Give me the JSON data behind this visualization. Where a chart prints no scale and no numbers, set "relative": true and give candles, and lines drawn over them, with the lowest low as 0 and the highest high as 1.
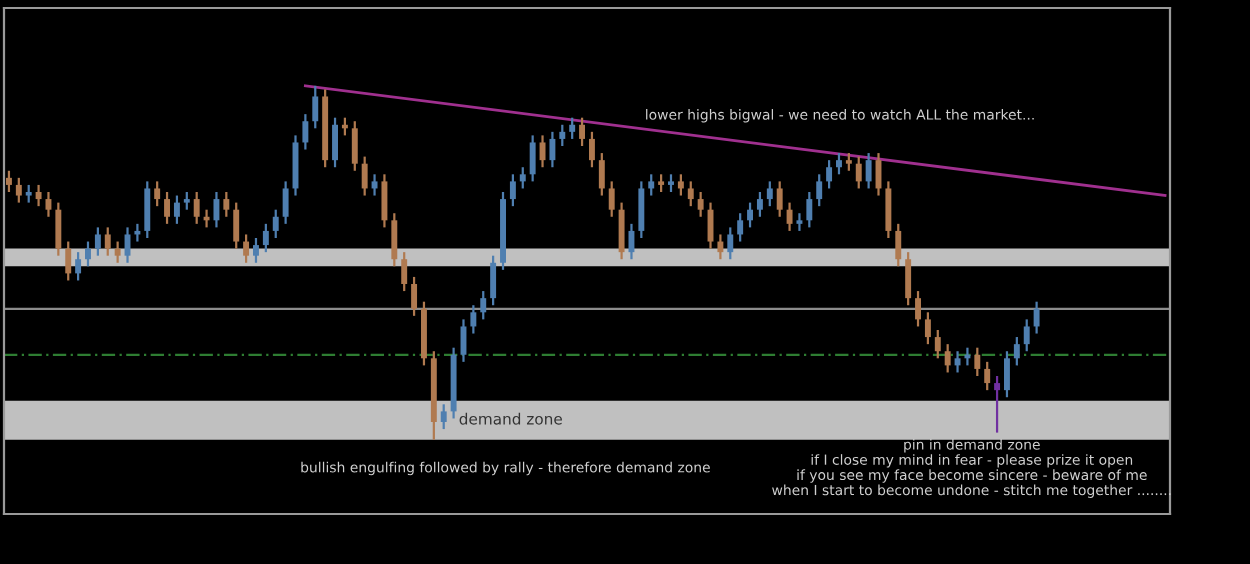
{
  "chart_data": {
    "type": "candlestick",
    "relative": true,
    "categories": [
      null,
      null,
      null,
      null,
      null,
      null,
      null,
      null,
      null,
      null,
      null,
      null,
      null,
      null,
      null,
      null,
      null,
      null,
      null,
      null,
      null,
      null,
      null,
      null,
      null,
      null,
      null,
      null,
      null,
      null,
      null,
      null,
      null,
      null,
      null,
      null,
      null,
      null,
      null,
      null,
      null,
      null,
      null,
      null,
      null,
      null,
      null,
      null,
      null,
      null,
      null,
      null,
      null,
      null,
      null,
      null,
      null,
      null,
      null,
      null,
      null,
      null,
      null,
      null,
      null,
      null,
      null,
      null,
      null,
      null,
      null,
      null,
      null,
      null,
      null,
      null,
      null,
      null,
      null,
      null,
      null,
      null,
      null,
      null,
      null,
      null,
      null,
      null,
      null,
      null,
      null,
      null,
      null,
      null,
      null,
      null,
      null,
      null,
      null,
      null,
      null,
      null,
      null,
      null,
      null,
      null,
      null,
      null,
      null,
      null,
      null,
      null,
      null,
      null,
      null,
      null,
      null,
      null
    ],
    "ohlc": [
      [
        0.74,
        0.76,
        0.7,
        0.72
      ],
      [
        0.72,
        0.74,
        0.67,
        0.69
      ],
      [
        0.69,
        0.72,
        0.67,
        0.7
      ],
      [
        0.7,
        0.72,
        0.66,
        0.68
      ],
      [
        0.68,
        0.7,
        0.63,
        0.65
      ],
      [
        0.65,
        0.67,
        0.52,
        0.54
      ],
      [
        0.54,
        0.56,
        0.45,
        0.47
      ],
      [
        0.47,
        0.53,
        0.45,
        0.51
      ],
      [
        0.51,
        0.56,
        0.49,
        0.54
      ],
      [
        0.54,
        0.6,
        0.52,
        0.58
      ],
      [
        0.58,
        0.6,
        0.52,
        0.54
      ],
      [
        0.54,
        0.56,
        0.5,
        0.52
      ],
      [
        0.52,
        0.6,
        0.5,
        0.58
      ],
      [
        0.58,
        0.61,
        0.56,
        0.59
      ],
      [
        0.59,
        0.73,
        0.57,
        0.71
      ],
      [
        0.71,
        0.73,
        0.66,
        0.68
      ],
      [
        0.68,
        0.7,
        0.61,
        0.63
      ],
      [
        0.63,
        0.69,
        0.61,
        0.67
      ],
      [
        0.67,
        0.7,
        0.65,
        0.68
      ],
      [
        0.68,
        0.7,
        0.61,
        0.63
      ],
      [
        0.63,
        0.65,
        0.6,
        0.62
      ],
      [
        0.62,
        0.7,
        0.6,
        0.68
      ],
      [
        0.68,
        0.7,
        0.63,
        0.65
      ],
      [
        0.65,
        0.67,
        0.54,
        0.56
      ],
      [
        0.56,
        0.58,
        0.5,
        0.52
      ],
      [
        0.52,
        0.57,
        0.5,
        0.55
      ],
      [
        0.55,
        0.61,
        0.53,
        0.59
      ],
      [
        0.59,
        0.65,
        0.57,
        0.63
      ],
      [
        0.63,
        0.73,
        0.61,
        0.71
      ],
      [
        0.71,
        0.86,
        0.69,
        0.84
      ],
      [
        0.84,
        0.92,
        0.82,
        0.9
      ],
      [
        0.9,
        1.0,
        0.88,
        0.97
      ],
      [
        0.97,
        0.99,
        0.77,
        0.79
      ],
      [
        0.79,
        0.91,
        0.77,
        0.89
      ],
      [
        0.89,
        0.91,
        0.86,
        0.88
      ],
      [
        0.88,
        0.9,
        0.76,
        0.78
      ],
      [
        0.78,
        0.8,
        0.69,
        0.71
      ],
      [
        0.71,
        0.75,
        0.69,
        0.73
      ],
      [
        0.73,
        0.75,
        0.6,
        0.62
      ],
      [
        0.62,
        0.64,
        0.49,
        0.51
      ],
      [
        0.51,
        0.53,
        0.42,
        0.44
      ],
      [
        0.44,
        0.46,
        0.35,
        0.37
      ],
      [
        0.37,
        0.39,
        0.21,
        0.23
      ],
      [
        0.23,
        0.25,
        0.0,
        0.05
      ],
      [
        0.05,
        0.1,
        0.03,
        0.08
      ],
      [
        0.08,
        0.26,
        0.06,
        0.24
      ],
      [
        0.24,
        0.34,
        0.22,
        0.32
      ],
      [
        0.32,
        0.38,
        0.3,
        0.36
      ],
      [
        0.36,
        0.42,
        0.34,
        0.4
      ],
      [
        0.4,
        0.52,
        0.38,
        0.5
      ],
      [
        0.5,
        0.7,
        0.48,
        0.68
      ],
      [
        0.68,
        0.75,
        0.66,
        0.73
      ],
      [
        0.73,
        0.77,
        0.71,
        0.75
      ],
      [
        0.75,
        0.86,
        0.73,
        0.84
      ],
      [
        0.84,
        0.86,
        0.77,
        0.79
      ],
      [
        0.79,
        0.87,
        0.77,
        0.85
      ],
      [
        0.85,
        0.89,
        0.83,
        0.87
      ],
      [
        0.87,
        0.91,
        0.85,
        0.89
      ],
      [
        0.89,
        0.91,
        0.83,
        0.85
      ],
      [
        0.85,
        0.87,
        0.77,
        0.79
      ],
      [
        0.79,
        0.81,
        0.69,
        0.71
      ],
      [
        0.71,
        0.73,
        0.63,
        0.65
      ],
      [
        0.65,
        0.67,
        0.51,
        0.53
      ],
      [
        0.53,
        0.61,
        0.51,
        0.59
      ],
      [
        0.59,
        0.73,
        0.57,
        0.71
      ],
      [
        0.71,
        0.75,
        0.69,
        0.73
      ],
      [
        0.73,
        0.75,
        0.7,
        0.72
      ],
      [
        0.72,
        0.75,
        0.7,
        0.73
      ],
      [
        0.73,
        0.75,
        0.69,
        0.71
      ],
      [
        0.71,
        0.73,
        0.66,
        0.68
      ],
      [
        0.68,
        0.7,
        0.63,
        0.65
      ],
      [
        0.65,
        0.67,
        0.54,
        0.56
      ],
      [
        0.56,
        0.58,
        0.51,
        0.53
      ],
      [
        0.53,
        0.6,
        0.51,
        0.58
      ],
      [
        0.58,
        0.64,
        0.56,
        0.62
      ],
      [
        0.62,
        0.67,
        0.6,
        0.65
      ],
      [
        0.65,
        0.7,
        0.63,
        0.68
      ],
      [
        0.68,
        0.73,
        0.66,
        0.71
      ],
      [
        0.71,
        0.73,
        0.63,
        0.65
      ],
      [
        0.65,
        0.67,
        0.59,
        0.61
      ],
      [
        0.61,
        0.64,
        0.59,
        0.62
      ],
      [
        0.62,
        0.7,
        0.6,
        0.68
      ],
      [
        0.68,
        0.75,
        0.66,
        0.73
      ],
      [
        0.73,
        0.79,
        0.71,
        0.77
      ],
      [
        0.77,
        0.81,
        0.75,
        0.79
      ],
      [
        0.79,
        0.81,
        0.76,
        0.78
      ],
      [
        0.78,
        0.8,
        0.71,
        0.73
      ],
      [
        0.73,
        0.81,
        0.71,
        0.79
      ],
      [
        0.79,
        0.81,
        0.69,
        0.71
      ],
      [
        0.71,
        0.73,
        0.57,
        0.59
      ],
      [
        0.59,
        0.61,
        0.49,
        0.51
      ],
      [
        0.51,
        0.53,
        0.38,
        0.4
      ],
      [
        0.4,
        0.42,
        0.32,
        0.34
      ],
      [
        0.34,
        0.36,
        0.27,
        0.29
      ],
      [
        0.29,
        0.31,
        0.23,
        0.25
      ],
      [
        0.25,
        0.27,
        0.19,
        0.21
      ],
      [
        0.21,
        0.25,
        0.19,
        0.23
      ],
      [
        0.23,
        0.26,
        0.21,
        0.24
      ],
      [
        0.24,
        0.26,
        0.18,
        0.2
      ],
      [
        0.2,
        0.22,
        0.14,
        0.16
      ],
      [
        0.16,
        0.18,
        0.02,
        0.14
      ],
      [
        0.14,
        0.25,
        0.12,
        0.23
      ],
      [
        0.23,
        0.29,
        0.21,
        0.27
      ],
      [
        0.27,
        0.34,
        0.25,
        0.32
      ],
      [
        0.32,
        0.39,
        0.3,
        0.37
      ],
      null,
      null,
      null,
      null,
      null,
      null,
      null,
      null,
      null,
      null,
      null,
      null,
      null
    ],
    "colors": [
      "#b07a50",
      "#b07a50",
      "#4f7fb0",
      "#b07a50",
      "#b07a50",
      "#b07a50",
      "#b07a50",
      "#4f7fb0",
      "#4f7fb0",
      "#4f7fb0",
      "#b07a50",
      "#b07a50",
      "#4f7fb0",
      "#4f7fb0",
      "#4f7fb0",
      "#b07a50",
      "#b07a50",
      "#4f7fb0",
      "#4f7fb0",
      "#b07a50",
      "#b07a50",
      "#4f7fb0",
      "#b07a50",
      "#b07a50",
      "#b07a50",
      "#4f7fb0",
      "#4f7fb0",
      "#4f7fb0",
      "#4f7fb0",
      "#4f7fb0",
      "#4f7fb0",
      "#4f7fb0",
      "#b07a50",
      "#4f7fb0",
      "#b07a50",
      "#b07a50",
      "#b07a50",
      "#4f7fb0",
      "#b07a50",
      "#b07a50",
      "#b07a50",
      "#b07a50",
      "#b07a50",
      "#b07a50",
      "#4f7fb0",
      "#4f7fb0",
      "#4f7fb0",
      "#4f7fb0",
      "#4f7fb0",
      "#4f7fb0",
      "#4f7fb0",
      "#4f7fb0",
      "#4f7fb0",
      "#4f7fb0",
      "#b07a50",
      "#4f7fb0",
      "#4f7fb0",
      "#4f7fb0",
      "#b07a50",
      "#b07a50",
      "#b07a50",
      "#b07a50",
      "#b07a50",
      "#4f7fb0",
      "#4f7fb0",
      "#4f7fb0",
      "#b07a50",
      "#4f7fb0",
      "#b07a50",
      "#b07a50",
      "#b07a50",
      "#b07a50",
      "#b07a50",
      "#4f7fb0",
      "#4f7fb0",
      "#4f7fb0",
      "#4f7fb0",
      "#4f7fb0",
      "#b07a50",
      "#b07a50",
      "#4f7fb0",
      "#4f7fb0",
      "#4f7fb0",
      "#4f7fb0",
      "#4f7fb0",
      "#b07a50",
      "#b07a50",
      "#4f7fb0",
      "#b07a50",
      "#b07a50",
      "#b07a50",
      "#b07a50",
      "#b07a50",
      "#b07a50",
      "#b07a50",
      "#b07a50",
      "#4f7fb0",
      "#4f7fb0",
      "#b07a50",
      "#b07a50",
      "#7030a0",
      "#4f7fb0",
      "#4f7fb0",
      "#4f7fb0",
      "#4f7fb0",
      null,
      null,
      null,
      null,
      null,
      null,
      null,
      null,
      null,
      null,
      null,
      null,
      null
    ],
    "series": [
      {
        "type": "line",
        "values": [
          null,
          null,
          null,
          null,
          null,
          null,
          null,
          null,
          null,
          null,
          null,
          null,
          null,
          null,
          null,
          null,
          null,
          null,
          null,
          null,
          null,
          null,
          null,
          null,
          null,
          null,
          null,
          null,
          null,
          null,
          1.0,
          null,
          null,
          null,
          null,
          null,
          null,
          null,
          null,
          null,
          null,
          null,
          null,
          null,
          null,
          null,
          null,
          null,
          null,
          null,
          null,
          null,
          null,
          null,
          null,
          null,
          null,
          null,
          null,
          null,
          null,
          null,
          null,
          null,
          null,
          null,
          null,
          null,
          null,
          null,
          null,
          null,
          null,
          null,
          null,
          null,
          null,
          null,
          null,
          null,
          null,
          null,
          null,
          null,
          null,
          null,
          null,
          null,
          null,
          null,
          null,
          null,
          null,
          null,
          null,
          null,
          null,
          null,
          null,
          null,
          null,
          null,
          null,
          null,
          null,
          null,
          null,
          null,
          null,
          null,
          null,
          null,
          null,
          null,
          null,
          null,
          null,
          0.69
        ],
        "color": "#a0308f"
      }
    ],
    "ref_lines": [
      {
        "axis": "y",
        "value": 0.37,
        "color": "#8c8c8c",
        "line_style": "solid"
      },
      {
        "axis": "y",
        "value": 0.24,
        "color": "#2e7d32",
        "line_style": "dashed"
      }
    ],
    "bands": [
      {
        "axis": "y",
        "from": 0.49,
        "to": 0.54,
        "color": "#c0c0c0"
      },
      {
        "axis": "y",
        "from": 0.0,
        "to": 0.11,
        "color": "#c0c0c0",
        "label": "demand zone"
      }
    ],
    "annotations": [
      "lower highs bigwal - we need to watch ALL the market...",
      "bullish engulfing followed by rally - therefore demand zone",
      "pin in demand zone",
      "if I close my mind in fear - please prize it open",
      "if you see my face become sincere - beware of me",
      "when I start to become undone - stitch me together ........"
    ]
  }
}
